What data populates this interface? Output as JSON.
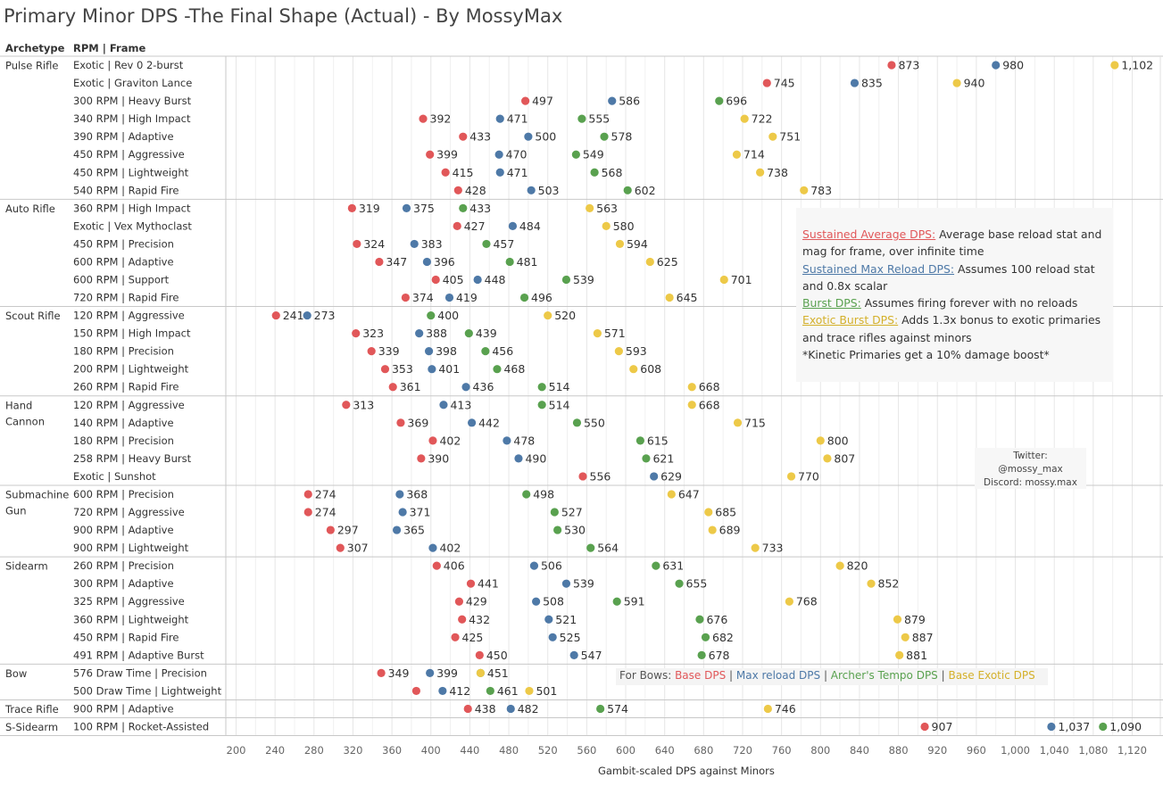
{
  "title": "Primary Minor DPS -The Final Shape (Actual) - By MossyMax",
  "headers": {
    "archetype": "Archetype",
    "rpm_frame": "RPM | Frame"
  },
  "colors": {
    "sustained": "#e15759",
    "max_reload": "#4e79a7",
    "burst": "#59a14f",
    "exotic": "#edc948"
  },
  "legend": {
    "sustained_key": "Sustained Average DPS:",
    "sustained_text_1": " Average base reload stat and",
    "sustained_text_2": "mag for frame, over infinite time",
    "max_key": "Sustained Max Reload DPS:",
    "max_text_1": " Assumes 100 reload stat",
    "max_text_2": "and 0.8x scalar",
    "burst_key": "Burst DPS:",
    "burst_text": " Assumes firing forever with no reloads",
    "exotic_key": "Exotic Burst DPS:",
    "exotic_text_1": " Adds 1.3x bonus to exotic primaries",
    "exotic_text_2": "and trace rifles against minors",
    "kinetic_note": "*Kinetic Primaries get a 10% damage boost*"
  },
  "twitter": {
    "label": "Twitter:",
    "handle": "@mossy_max",
    "discord_label": "Discord:",
    "discord": "mossy.max"
  },
  "bows_legend": {
    "prefix": "For Bows:",
    "base": "Base DPS",
    "max": "Max reload DPS",
    "archer": "Archer's Tempo DPS",
    "exotic": "Base Exotic DPS",
    "sep": " | "
  },
  "chart_data": {
    "type": "scatter",
    "title": "Primary Minor DPS -The Final Shape (Actual) - By MossyMax",
    "xlabel": "Gambit-scaled DPS against Minors",
    "xlim": [
      190,
      1130
    ],
    "xticks": [
      200,
      240,
      280,
      320,
      360,
      400,
      440,
      480,
      520,
      560,
      600,
      640,
      680,
      720,
      760,
      800,
      840,
      880,
      920,
      960,
      1000,
      1040,
      1080,
      1120
    ],
    "xtick_labels": [
      "200",
      "240",
      "280",
      "320",
      "360",
      "400",
      "440",
      "480",
      "520",
      "560",
      "600",
      "640",
      "680",
      "720",
      "760",
      "800",
      "840",
      "880",
      "920",
      "960",
      "1,000",
      "1,040",
      "1,080",
      "1,120"
    ],
    "series_names": [
      "Sustained Average DPS",
      "Sustained Max Reload DPS",
      "Burst DPS",
      "Exotic Burst DPS"
    ],
    "groups": [
      {
        "archetype": [
          "Pulse Rifle"
        ],
        "rows": [
          {
            "frame": "Exotic | Rev 0 2-burst",
            "values": [
              873,
              980,
              null,
              1102
            ],
            "labels": [
              "873",
              "980",
              "",
              "1,102"
            ]
          },
          {
            "frame": "Exotic | Graviton Lance",
            "values": [
              745,
              835,
              null,
              940
            ],
            "labels": [
              "745",
              "835",
              "",
              "940"
            ]
          },
          {
            "frame": "300 RPM | Heavy Burst",
            "values": [
              497,
              586,
              696,
              null
            ],
            "labels": [
              "497",
              "586",
              "696",
              ""
            ]
          },
          {
            "frame": "340 RPM | High Impact",
            "values": [
              392,
              471,
              555,
              722
            ],
            "labels": [
              "392",
              "471",
              "555",
              "722"
            ]
          },
          {
            "frame": "390 RPM | Adaptive",
            "values": [
              433,
              500,
              578,
              751
            ],
            "labels": [
              "433",
              "500",
              "578",
              "751"
            ]
          },
          {
            "frame": "450 RPM | Aggressive",
            "values": [
              399,
              470,
              549,
              714
            ],
            "labels": [
              "399",
              "470",
              "549",
              "714"
            ]
          },
          {
            "frame": "450 RPM | Lightweight",
            "values": [
              415,
              471,
              568,
              738
            ],
            "labels": [
              "415",
              "471",
              "568",
              "738"
            ]
          },
          {
            "frame": "540 RPM | Rapid Fire",
            "values": [
              428,
              503,
              602,
              783
            ],
            "labels": [
              "428",
              "503",
              "602",
              "783"
            ]
          }
        ]
      },
      {
        "archetype": [
          "Auto Rifle"
        ],
        "rows": [
          {
            "frame": "360 RPM | High Impact",
            "values": [
              319,
              375,
              433,
              563
            ],
            "labels": [
              "319",
              "375",
              "433",
              "563"
            ]
          },
          {
            "frame": "Exotic | Vex Mythoclast",
            "values": [
              427,
              484,
              null,
              580
            ],
            "labels": [
              "427",
              "484",
              "",
              "580"
            ]
          },
          {
            "frame": "450 RPM | Precision",
            "values": [
              324,
              383,
              457,
              594
            ],
            "labels": [
              "324",
              "383",
              "457",
              "594"
            ]
          },
          {
            "frame": "600 RPM | Adaptive",
            "values": [
              347,
              396,
              481,
              625
            ],
            "labels": [
              "347",
              "396",
              "481",
              "625"
            ]
          },
          {
            "frame": "600 RPM | Support",
            "values": [
              405,
              448,
              539,
              701
            ],
            "labels": [
              "405",
              "448",
              "539",
              "701"
            ]
          },
          {
            "frame": "720 RPM | Rapid Fire",
            "values": [
              374,
              419,
              496,
              645
            ],
            "labels": [
              "374",
              "419",
              "496",
              "645"
            ]
          }
        ]
      },
      {
        "archetype": [
          "Scout Rifle"
        ],
        "rows": [
          {
            "frame": "120 RPM | Aggressive",
            "values": [
              241,
              273,
              400,
              520
            ],
            "labels": [
              "241",
              "273",
              "400",
              "520"
            ]
          },
          {
            "frame": "150 RPM | High Impact",
            "values": [
              323,
              388,
              439,
              571
            ],
            "labels": [
              "323",
              "388",
              "439",
              "571"
            ]
          },
          {
            "frame": "180 RPM | Precision",
            "values": [
              339,
              398,
              456,
              593
            ],
            "labels": [
              "339",
              "398",
              "456",
              "593"
            ]
          },
          {
            "frame": "200 RPM | Lightweight",
            "values": [
              353,
              401,
              468,
              608
            ],
            "labels": [
              "353",
              "401",
              "468",
              "608"
            ]
          },
          {
            "frame": "260 RPM | Rapid Fire",
            "values": [
              361,
              436,
              514,
              668
            ],
            "labels": [
              "361",
              "436",
              "514",
              "668"
            ]
          }
        ]
      },
      {
        "archetype": [
          "Hand",
          "Cannon"
        ],
        "rows": [
          {
            "frame": "120 RPM | Aggressive",
            "values": [
              313,
              413,
              514,
              668
            ],
            "labels": [
              "313",
              "413",
              "514",
              "668"
            ]
          },
          {
            "frame": "140 RPM | Adaptive",
            "values": [
              369,
              442,
              550,
              715
            ],
            "labels": [
              "369",
              "442",
              "550",
              "715"
            ]
          },
          {
            "frame": "180 RPM | Precision",
            "values": [
              402,
              478,
              615,
              800
            ],
            "labels": [
              "402",
              "478",
              "615",
              "800"
            ]
          },
          {
            "frame": "258 RPM | Heavy Burst",
            "values": [
              390,
              490,
              621,
              807
            ],
            "labels": [
              "390",
              "490",
              "621",
              "807"
            ]
          },
          {
            "frame": "Exotic | Sunshot",
            "values": [
              556,
              629,
              null,
              770
            ],
            "labels": [
              "556",
              "629",
              "",
              "770"
            ]
          }
        ]
      },
      {
        "archetype": [
          "Submachine",
          "Gun"
        ],
        "rows": [
          {
            "frame": "600 RPM | Precision",
            "values": [
              274,
              368,
              498,
              647
            ],
            "labels": [
              "274",
              "368",
              "498",
              "647"
            ]
          },
          {
            "frame": "720 RPM | Aggressive",
            "values": [
              274,
              371,
              527,
              685
            ],
            "labels": [
              "274",
              "371",
              "527",
              "685"
            ]
          },
          {
            "frame": "900 RPM | Adaptive",
            "values": [
              297,
              365,
              530,
              689
            ],
            "labels": [
              "297",
              "365",
              "530",
              "689"
            ]
          },
          {
            "frame": "900 RPM | Lightweight",
            "values": [
              307,
              402,
              564,
              733
            ],
            "labels": [
              "307",
              "402",
              "564",
              "733"
            ]
          }
        ]
      },
      {
        "archetype": [
          "Sidearm"
        ],
        "rows": [
          {
            "frame": "260 RPM | Precision",
            "values": [
              406,
              506,
              631,
              820
            ],
            "labels": [
              "406",
              "506",
              "631",
              "820"
            ]
          },
          {
            "frame": "300 RPM | Adaptive",
            "values": [
              441,
              539,
              655,
              852
            ],
            "labels": [
              "441",
              "539",
              "655",
              "852"
            ]
          },
          {
            "frame": "325 RPM | Aggressive",
            "values": [
              429,
              508,
              591,
              768
            ],
            "labels": [
              "429",
              "508",
              "591",
              "768"
            ]
          },
          {
            "frame": "360 RPM | Lightweight",
            "values": [
              432,
              521,
              676,
              879
            ],
            "labels": [
              "432",
              "521",
              "676",
              "879"
            ]
          },
          {
            "frame": "450 RPM | Rapid Fire",
            "values": [
              425,
              525,
              682,
              887
            ],
            "labels": [
              "425",
              "525",
              "682",
              "887"
            ]
          },
          {
            "frame": "491 RPM | Adaptive Burst",
            "values": [
              450,
              547,
              678,
              881
            ],
            "labels": [
              "450",
              "547",
              "678",
              "881"
            ]
          }
        ]
      },
      {
        "archetype": [
          "Bow"
        ],
        "rows": [
          {
            "frame": "576 Draw Time | Precision",
            "values": [
              349,
              399,
              451,
              451
            ],
            "labels": [
              "349",
              "399",
              "",
              "451"
            ]
          },
          {
            "frame": "500 Draw Time | Lightweight",
            "values": [
              385,
              412,
              461,
              501
            ],
            "labels": [
              "",
              "412",
              "461",
              "501"
            ]
          }
        ]
      },
      {
        "archetype": [
          "Trace Rifle"
        ],
        "rows": [
          {
            "frame": "900 RPM | Adaptive",
            "values": [
              438,
              482,
              574,
              746
            ],
            "labels": [
              "438",
              "482",
              "574",
              "746"
            ]
          }
        ]
      },
      {
        "archetype": [
          "S-Sidearm"
        ],
        "rows": [
          {
            "frame": "100 RPM | Rocket-Assisted",
            "values": [
              907,
              1037,
              1090,
              null
            ],
            "labels": [
              "907",
              "1,037",
              "1,090",
              ""
            ]
          }
        ]
      }
    ]
  }
}
